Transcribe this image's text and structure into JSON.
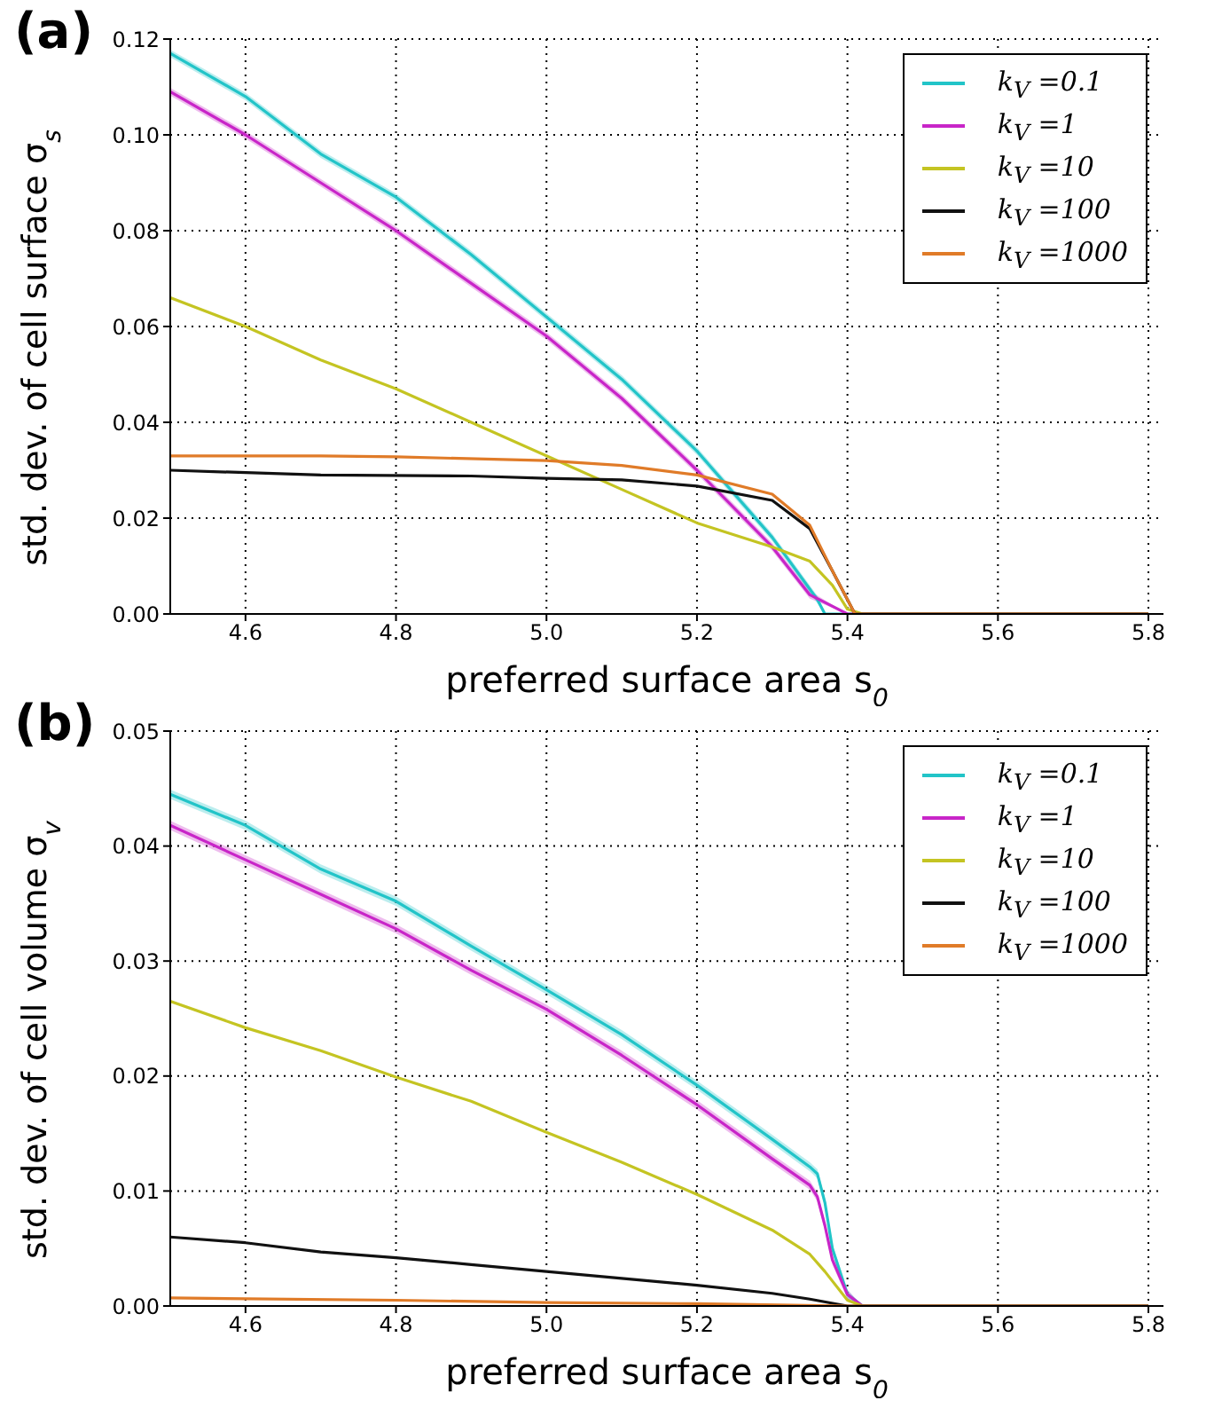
{
  "chart_data": [
    {
      "type": "line",
      "title": "(a)",
      "xlabel": "preferred surface area s$_{0}$",
      "ylabel": "std. dev. of cell surface σ$_{s}$",
      "xlim": [
        4.5,
        5.82
      ],
      "xticks": [
        4.6,
        4.8,
        {
          "value": 5,
          "label": "5.0"
        },
        5.2,
        5.4,
        5.6,
        5.8
      ],
      "ylim": [
        0,
        0.12
      ],
      "yticks": [
        {
          "value": 0,
          "label": "0.00"
        },
        {
          "value": 0.02,
          "label": "0.02"
        },
        {
          "value": 0.04,
          "label": "0.04"
        },
        {
          "value": 0.06,
          "label": "0.06"
        },
        {
          "value": 0.08,
          "label": "0.08"
        },
        {
          "value": 0.1,
          "label": "0.10"
        },
        {
          "value": 0.12,
          "label": "0.12"
        }
      ],
      "grid": true,
      "legend": "top right",
      "line_style": "solid",
      "marker": "none",
      "series": [
        {
          "name": "k$_{V}$ =0.1",
          "color": "#22c4c8",
          "x": [
            4.5,
            4.6,
            4.7,
            4.8,
            4.9,
            5.0,
            5.1,
            5.2,
            5.3,
            5.36,
            5.37,
            5.4,
            5.8
          ],
          "values": [
            0.117,
            0.108,
            0.096,
            0.087,
            0.075,
            0.062,
            0.049,
            0.034,
            0.016,
            0.003,
            0,
            0,
            0
          ],
          "lower": [
            0.1162,
            0.1072,
            0.0952,
            0.0862,
            0.0742,
            0.0612,
            0.0482,
            0.0332,
            0.0152,
            0.0022,
            0,
            0,
            0
          ],
          "upper": [
            0.1178,
            0.1088,
            0.0968,
            0.0878,
            0.0758,
            0.0628,
            0.0498,
            0.0348,
            0.0168,
            0.0038,
            0,
            0,
            0
          ]
        },
        {
          "name": "k$_{V}$ =1",
          "color": "#c825c8",
          "x": [
            4.5,
            4.6,
            4.7,
            4.8,
            4.9,
            5.0,
            5.1,
            5.2,
            5.3,
            5.35,
            5.4,
            5.8
          ],
          "values": [
            0.109,
            0.1,
            0.09,
            0.08,
            0.069,
            0.058,
            0.045,
            0.03,
            0.014,
            0.004,
            0,
            0
          ],
          "lower": [
            0.1082,
            0.0992,
            0.0892,
            0.0792,
            0.0682,
            0.0572,
            0.0442,
            0.0292,
            0.0132,
            0.0032,
            0,
            0
          ],
          "upper": [
            0.1098,
            0.1008,
            0.0908,
            0.0808,
            0.0698,
            0.0588,
            0.0458,
            0.0308,
            0.0148,
            0.0048,
            0,
            0
          ]
        },
        {
          "name": "k$_{V}$ =10",
          "color": "#c4c422",
          "x": [
            4.5,
            4.6,
            4.7,
            4.8,
            4.9,
            5.0,
            5.1,
            5.2,
            5.3,
            5.35,
            5.38,
            5.4,
            5.42,
            5.8
          ],
          "values": [
            0.066,
            0.06,
            0.053,
            0.047,
            0.04,
            0.033,
            0.026,
            0.019,
            0.014,
            0.011,
            0.006,
            0.001,
            0,
            0
          ]
        },
        {
          "name": "k$_{V}$ =100",
          "color": "#111111",
          "x": [
            4.5,
            4.7,
            4.9,
            5.0,
            5.1,
            5.2,
            5.3,
            5.35,
            5.38,
            5.41,
            5.8
          ],
          "values": [
            0.03,
            0.029,
            0.0288,
            0.0283,
            0.028,
            0.0267,
            0.0237,
            0.0178,
            0.009,
            0,
            0
          ]
        },
        {
          "name": "k$_{V}$ =1000",
          "color": "#e07b28",
          "x": [
            4.5,
            4.7,
            4.8,
            5.0,
            5.1,
            5.2,
            5.3,
            5.35,
            5.38,
            5.41,
            5.8
          ],
          "values": [
            0.033,
            0.033,
            0.0328,
            0.032,
            0.031,
            0.029,
            0.025,
            0.0185,
            0.009,
            0,
            0
          ]
        }
      ]
    },
    {
      "type": "line",
      "title": "(b)",
      "xlabel": "preferred surface area s$_{0}$",
      "ylabel": "std. dev. of cell volume σ$_{v}$",
      "xlim": [
        4.5,
        5.82
      ],
      "xticks": [
        4.6,
        4.8,
        {
          "value": 5,
          "label": "5.0"
        },
        5.2,
        5.4,
        5.6,
        5.8
      ],
      "ylim": [
        0,
        0.05
      ],
      "yticks": [
        {
          "value": 0,
          "label": "0.00"
        },
        {
          "value": 0.01,
          "label": "0.01"
        },
        {
          "value": 0.02,
          "label": "0.02"
        },
        {
          "value": 0.03,
          "label": "0.03"
        },
        {
          "value": 0.04,
          "label": "0.04"
        },
        {
          "value": 0.05,
          "label": "0.05"
        }
      ],
      "grid": true,
      "legend": "top right",
      "line_style": "solid",
      "marker": "none",
      "series": [
        {
          "name": "k$_{V}$ =0.1",
          "color": "#22c4c8",
          "x": [
            4.5,
            4.6,
            4.7,
            4.8,
            4.9,
            5.0,
            5.1,
            5.2,
            5.3,
            5.35,
            5.36,
            5.37,
            5.38,
            5.4,
            5.42,
            5.8
          ],
          "values": [
            0.0445,
            0.0418,
            0.038,
            0.0352,
            0.0313,
            0.0275,
            0.0236,
            0.0192,
            0.0145,
            0.0121,
            0.0115,
            0.009,
            0.005,
            0.001,
            0,
            0
          ],
          "lower": [
            0.0441,
            0.0414,
            0.0376,
            0.0348,
            0.0309,
            0.0271,
            0.0232,
            0.0188,
            0.0141,
            0.0117,
            0.0111,
            0.0086,
            0.0046,
            0.0006,
            0,
            0
          ],
          "upper": [
            0.0449,
            0.0422,
            0.0384,
            0.0356,
            0.0317,
            0.0279,
            0.024,
            0.0196,
            0.0149,
            0.0125,
            0.0119,
            0.0094,
            0.0054,
            0.0014,
            0,
            0
          ]
        },
        {
          "name": "k$_{V}$ =1",
          "color": "#c825c8",
          "x": [
            4.5,
            4.6,
            4.7,
            4.8,
            4.9,
            5.0,
            5.1,
            5.2,
            5.3,
            5.35,
            5.36,
            5.37,
            5.38,
            5.4,
            5.42,
            5.8
          ],
          "values": [
            0.0418,
            0.0388,
            0.0358,
            0.0328,
            0.0292,
            0.0258,
            0.0218,
            0.0175,
            0.0128,
            0.0105,
            0.0095,
            0.007,
            0.004,
            0.001,
            0,
            0
          ],
          "lower": [
            0.0414,
            0.0384,
            0.0354,
            0.0324,
            0.0288,
            0.0254,
            0.0214,
            0.0171,
            0.0124,
            0.0101,
            0.0091,
            0.0066,
            0.0036,
            0.0006,
            0,
            0
          ],
          "upper": [
            0.0422,
            0.0392,
            0.0362,
            0.0332,
            0.0296,
            0.0262,
            0.0222,
            0.0179,
            0.0132,
            0.0109,
            0.0099,
            0.0074,
            0.0044,
            0.0014,
            0,
            0
          ]
        },
        {
          "name": "k$_{V}$ =10",
          "color": "#c4c422",
          "x": [
            4.5,
            4.6,
            4.7,
            4.8,
            4.9,
            5.0,
            5.1,
            5.2,
            5.3,
            5.35,
            5.37,
            5.4,
            5.42,
            5.8
          ],
          "values": [
            0.0265,
            0.0242,
            0.0222,
            0.0199,
            0.0178,
            0.0151,
            0.0125,
            0.0097,
            0.0066,
            0.0045,
            0.003,
            0.0005,
            0,
            0
          ]
        },
        {
          "name": "k$_{V}$ =100",
          "color": "#111111",
          "x": [
            4.5,
            4.6,
            4.7,
            4.8,
            4.9,
            5.0,
            5.1,
            5.2,
            5.3,
            5.35,
            5.4,
            5.8
          ],
          "values": [
            0.006,
            0.0055,
            0.0047,
            0.0042,
            0.0036,
            0.003,
            0.0024,
            0.0018,
            0.0011,
            0.0006,
            0,
            0
          ]
        },
        {
          "name": "k$_{V}$ =1000",
          "color": "#e07b28",
          "x": [
            4.5,
            4.8,
            5.0,
            5.2,
            5.4,
            5.8
          ],
          "values": [
            0.0007,
            0.0005,
            0.0003,
            0.0002,
            0,
            0
          ]
        }
      ]
    }
  ]
}
